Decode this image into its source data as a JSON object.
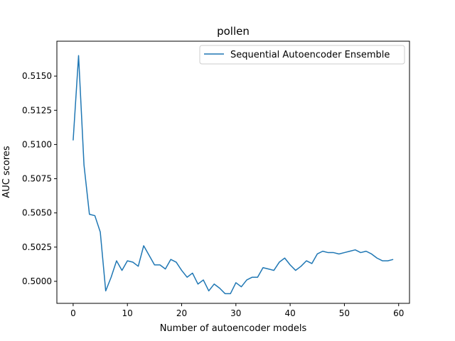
{
  "chart_data": {
    "type": "line",
    "title": "pollen",
    "xlabel": "Number of autoencoder models",
    "ylabel": "AUC scores",
    "xlim": [
      -3,
      62
    ],
    "ylim": [
      0.49839,
      0.51755
    ],
    "xticks": [
      0,
      10,
      20,
      30,
      40,
      50,
      60
    ],
    "yticks": [
      0.5,
      0.5025,
      0.505,
      0.5075,
      0.51,
      0.5125,
      0.515
    ],
    "ytick_labels": [
      "0.5000",
      "0.5025",
      "0.5050",
      "0.5075",
      "0.5100",
      "0.5125",
      "0.5150"
    ],
    "grid": false,
    "legend_position": "top-right",
    "series": [
      {
        "name": "Sequential Autoencoder Ensemble",
        "color": "#1f77b4",
        "x": [
          0,
          1,
          2,
          3,
          4,
          5,
          6,
          7,
          8,
          9,
          10,
          11,
          12,
          13,
          14,
          15,
          16,
          17,
          18,
          19,
          20,
          21,
          22,
          23,
          24,
          25,
          26,
          27,
          28,
          29,
          30,
          31,
          32,
          33,
          34,
          35,
          36,
          37,
          38,
          39,
          40,
          41,
          42,
          43,
          44,
          45,
          46,
          47,
          48,
          49,
          50,
          51,
          52,
          53,
          54,
          55,
          56,
          57,
          58,
          59
        ],
        "values": [
          0.5103,
          0.5165,
          0.5085,
          0.5049,
          0.5048,
          0.5036,
          0.4993,
          0.5003,
          0.5015,
          0.5008,
          0.5015,
          0.5014,
          0.5011,
          0.5026,
          0.5019,
          0.5012,
          0.5012,
          0.5009,
          0.5016,
          0.5014,
          0.5008,
          0.5003,
          0.5006,
          0.4998,
          0.5001,
          0.4993,
          0.4998,
          0.4995,
          0.4991,
          0.4991,
          0.4999,
          0.4996,
          0.5001,
          0.5003,
          0.5003,
          0.501,
          0.5009,
          0.5008,
          0.5014,
          0.5017,
          0.5012,
          0.5008,
          0.5011,
          0.5015,
          0.5013,
          0.502,
          0.5022,
          0.5021,
          0.5021,
          0.502,
          0.5021,
          0.5022,
          0.5023,
          0.5021,
          0.5022,
          0.502,
          0.5017,
          0.5015,
          0.5015,
          0.5016
        ]
      }
    ]
  }
}
